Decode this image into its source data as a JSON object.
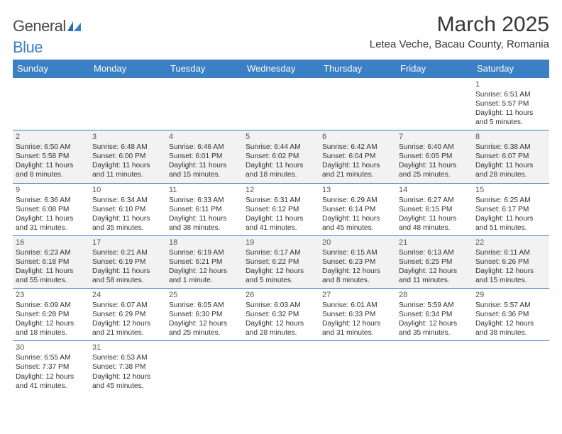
{
  "brand": {
    "name_part1": "General",
    "name_part2": "Blue"
  },
  "title": "March 2025",
  "location": "Letea Veche, Bacau County, Romania",
  "colors": {
    "header_bg": "#3b7fc4",
    "header_text": "#ffffff",
    "border": "#3b7fc4",
    "shade": "#f2f2f2",
    "text": "#333333"
  },
  "weekdays": [
    "Sunday",
    "Monday",
    "Tuesday",
    "Wednesday",
    "Thursday",
    "Friday",
    "Saturday"
  ],
  "grid": [
    [
      null,
      null,
      null,
      null,
      null,
      null,
      {
        "n": "1",
        "sr": "Sunrise: 6:51 AM",
        "ss": "Sunset: 5:57 PM",
        "dl": "Daylight: 11 hours and 5 minutes."
      }
    ],
    [
      {
        "n": "2",
        "sr": "Sunrise: 6:50 AM",
        "ss": "Sunset: 5:58 PM",
        "dl": "Daylight: 11 hours and 8 minutes."
      },
      {
        "n": "3",
        "sr": "Sunrise: 6:48 AM",
        "ss": "Sunset: 6:00 PM",
        "dl": "Daylight: 11 hours and 11 minutes."
      },
      {
        "n": "4",
        "sr": "Sunrise: 6:46 AM",
        "ss": "Sunset: 6:01 PM",
        "dl": "Daylight: 11 hours and 15 minutes."
      },
      {
        "n": "5",
        "sr": "Sunrise: 6:44 AM",
        "ss": "Sunset: 6:02 PM",
        "dl": "Daylight: 11 hours and 18 minutes."
      },
      {
        "n": "6",
        "sr": "Sunrise: 6:42 AM",
        "ss": "Sunset: 6:04 PM",
        "dl": "Daylight: 11 hours and 21 minutes."
      },
      {
        "n": "7",
        "sr": "Sunrise: 6:40 AM",
        "ss": "Sunset: 6:05 PM",
        "dl": "Daylight: 11 hours and 25 minutes."
      },
      {
        "n": "8",
        "sr": "Sunrise: 6:38 AM",
        "ss": "Sunset: 6:07 PM",
        "dl": "Daylight: 11 hours and 28 minutes."
      }
    ],
    [
      {
        "n": "9",
        "sr": "Sunrise: 6:36 AM",
        "ss": "Sunset: 6:08 PM",
        "dl": "Daylight: 11 hours and 31 minutes."
      },
      {
        "n": "10",
        "sr": "Sunrise: 6:34 AM",
        "ss": "Sunset: 6:10 PM",
        "dl": "Daylight: 11 hours and 35 minutes."
      },
      {
        "n": "11",
        "sr": "Sunrise: 6:33 AM",
        "ss": "Sunset: 6:11 PM",
        "dl": "Daylight: 11 hours and 38 minutes."
      },
      {
        "n": "12",
        "sr": "Sunrise: 6:31 AM",
        "ss": "Sunset: 6:12 PM",
        "dl": "Daylight: 11 hours and 41 minutes."
      },
      {
        "n": "13",
        "sr": "Sunrise: 6:29 AM",
        "ss": "Sunset: 6:14 PM",
        "dl": "Daylight: 11 hours and 45 minutes."
      },
      {
        "n": "14",
        "sr": "Sunrise: 6:27 AM",
        "ss": "Sunset: 6:15 PM",
        "dl": "Daylight: 11 hours and 48 minutes."
      },
      {
        "n": "15",
        "sr": "Sunrise: 6:25 AM",
        "ss": "Sunset: 6:17 PM",
        "dl": "Daylight: 11 hours and 51 minutes."
      }
    ],
    [
      {
        "n": "16",
        "sr": "Sunrise: 6:23 AM",
        "ss": "Sunset: 6:18 PM",
        "dl": "Daylight: 11 hours and 55 minutes."
      },
      {
        "n": "17",
        "sr": "Sunrise: 6:21 AM",
        "ss": "Sunset: 6:19 PM",
        "dl": "Daylight: 11 hours and 58 minutes."
      },
      {
        "n": "18",
        "sr": "Sunrise: 6:19 AM",
        "ss": "Sunset: 6:21 PM",
        "dl": "Daylight: 12 hours and 1 minute."
      },
      {
        "n": "19",
        "sr": "Sunrise: 6:17 AM",
        "ss": "Sunset: 6:22 PM",
        "dl": "Daylight: 12 hours and 5 minutes."
      },
      {
        "n": "20",
        "sr": "Sunrise: 6:15 AM",
        "ss": "Sunset: 6:23 PM",
        "dl": "Daylight: 12 hours and 8 minutes."
      },
      {
        "n": "21",
        "sr": "Sunrise: 6:13 AM",
        "ss": "Sunset: 6:25 PM",
        "dl": "Daylight: 12 hours and 11 minutes."
      },
      {
        "n": "22",
        "sr": "Sunrise: 6:11 AM",
        "ss": "Sunset: 6:26 PM",
        "dl": "Daylight: 12 hours and 15 minutes."
      }
    ],
    [
      {
        "n": "23",
        "sr": "Sunrise: 6:09 AM",
        "ss": "Sunset: 6:28 PM",
        "dl": "Daylight: 12 hours and 18 minutes."
      },
      {
        "n": "24",
        "sr": "Sunrise: 6:07 AM",
        "ss": "Sunset: 6:29 PM",
        "dl": "Daylight: 12 hours and 21 minutes."
      },
      {
        "n": "25",
        "sr": "Sunrise: 6:05 AM",
        "ss": "Sunset: 6:30 PM",
        "dl": "Daylight: 12 hours and 25 minutes."
      },
      {
        "n": "26",
        "sr": "Sunrise: 6:03 AM",
        "ss": "Sunset: 6:32 PM",
        "dl": "Daylight: 12 hours and 28 minutes."
      },
      {
        "n": "27",
        "sr": "Sunrise: 6:01 AM",
        "ss": "Sunset: 6:33 PM",
        "dl": "Daylight: 12 hours and 31 minutes."
      },
      {
        "n": "28",
        "sr": "Sunrise: 5:59 AM",
        "ss": "Sunset: 6:34 PM",
        "dl": "Daylight: 12 hours and 35 minutes."
      },
      {
        "n": "29",
        "sr": "Sunrise: 5:57 AM",
        "ss": "Sunset: 6:36 PM",
        "dl": "Daylight: 12 hours and 38 minutes."
      }
    ],
    [
      {
        "n": "30",
        "sr": "Sunrise: 6:55 AM",
        "ss": "Sunset: 7:37 PM",
        "dl": "Daylight: 12 hours and 41 minutes."
      },
      {
        "n": "31",
        "sr": "Sunrise: 6:53 AM",
        "ss": "Sunset: 7:38 PM",
        "dl": "Daylight: 12 hours and 45 minutes."
      },
      null,
      null,
      null,
      null,
      null
    ]
  ],
  "shaded_rows": [
    1,
    3
  ]
}
